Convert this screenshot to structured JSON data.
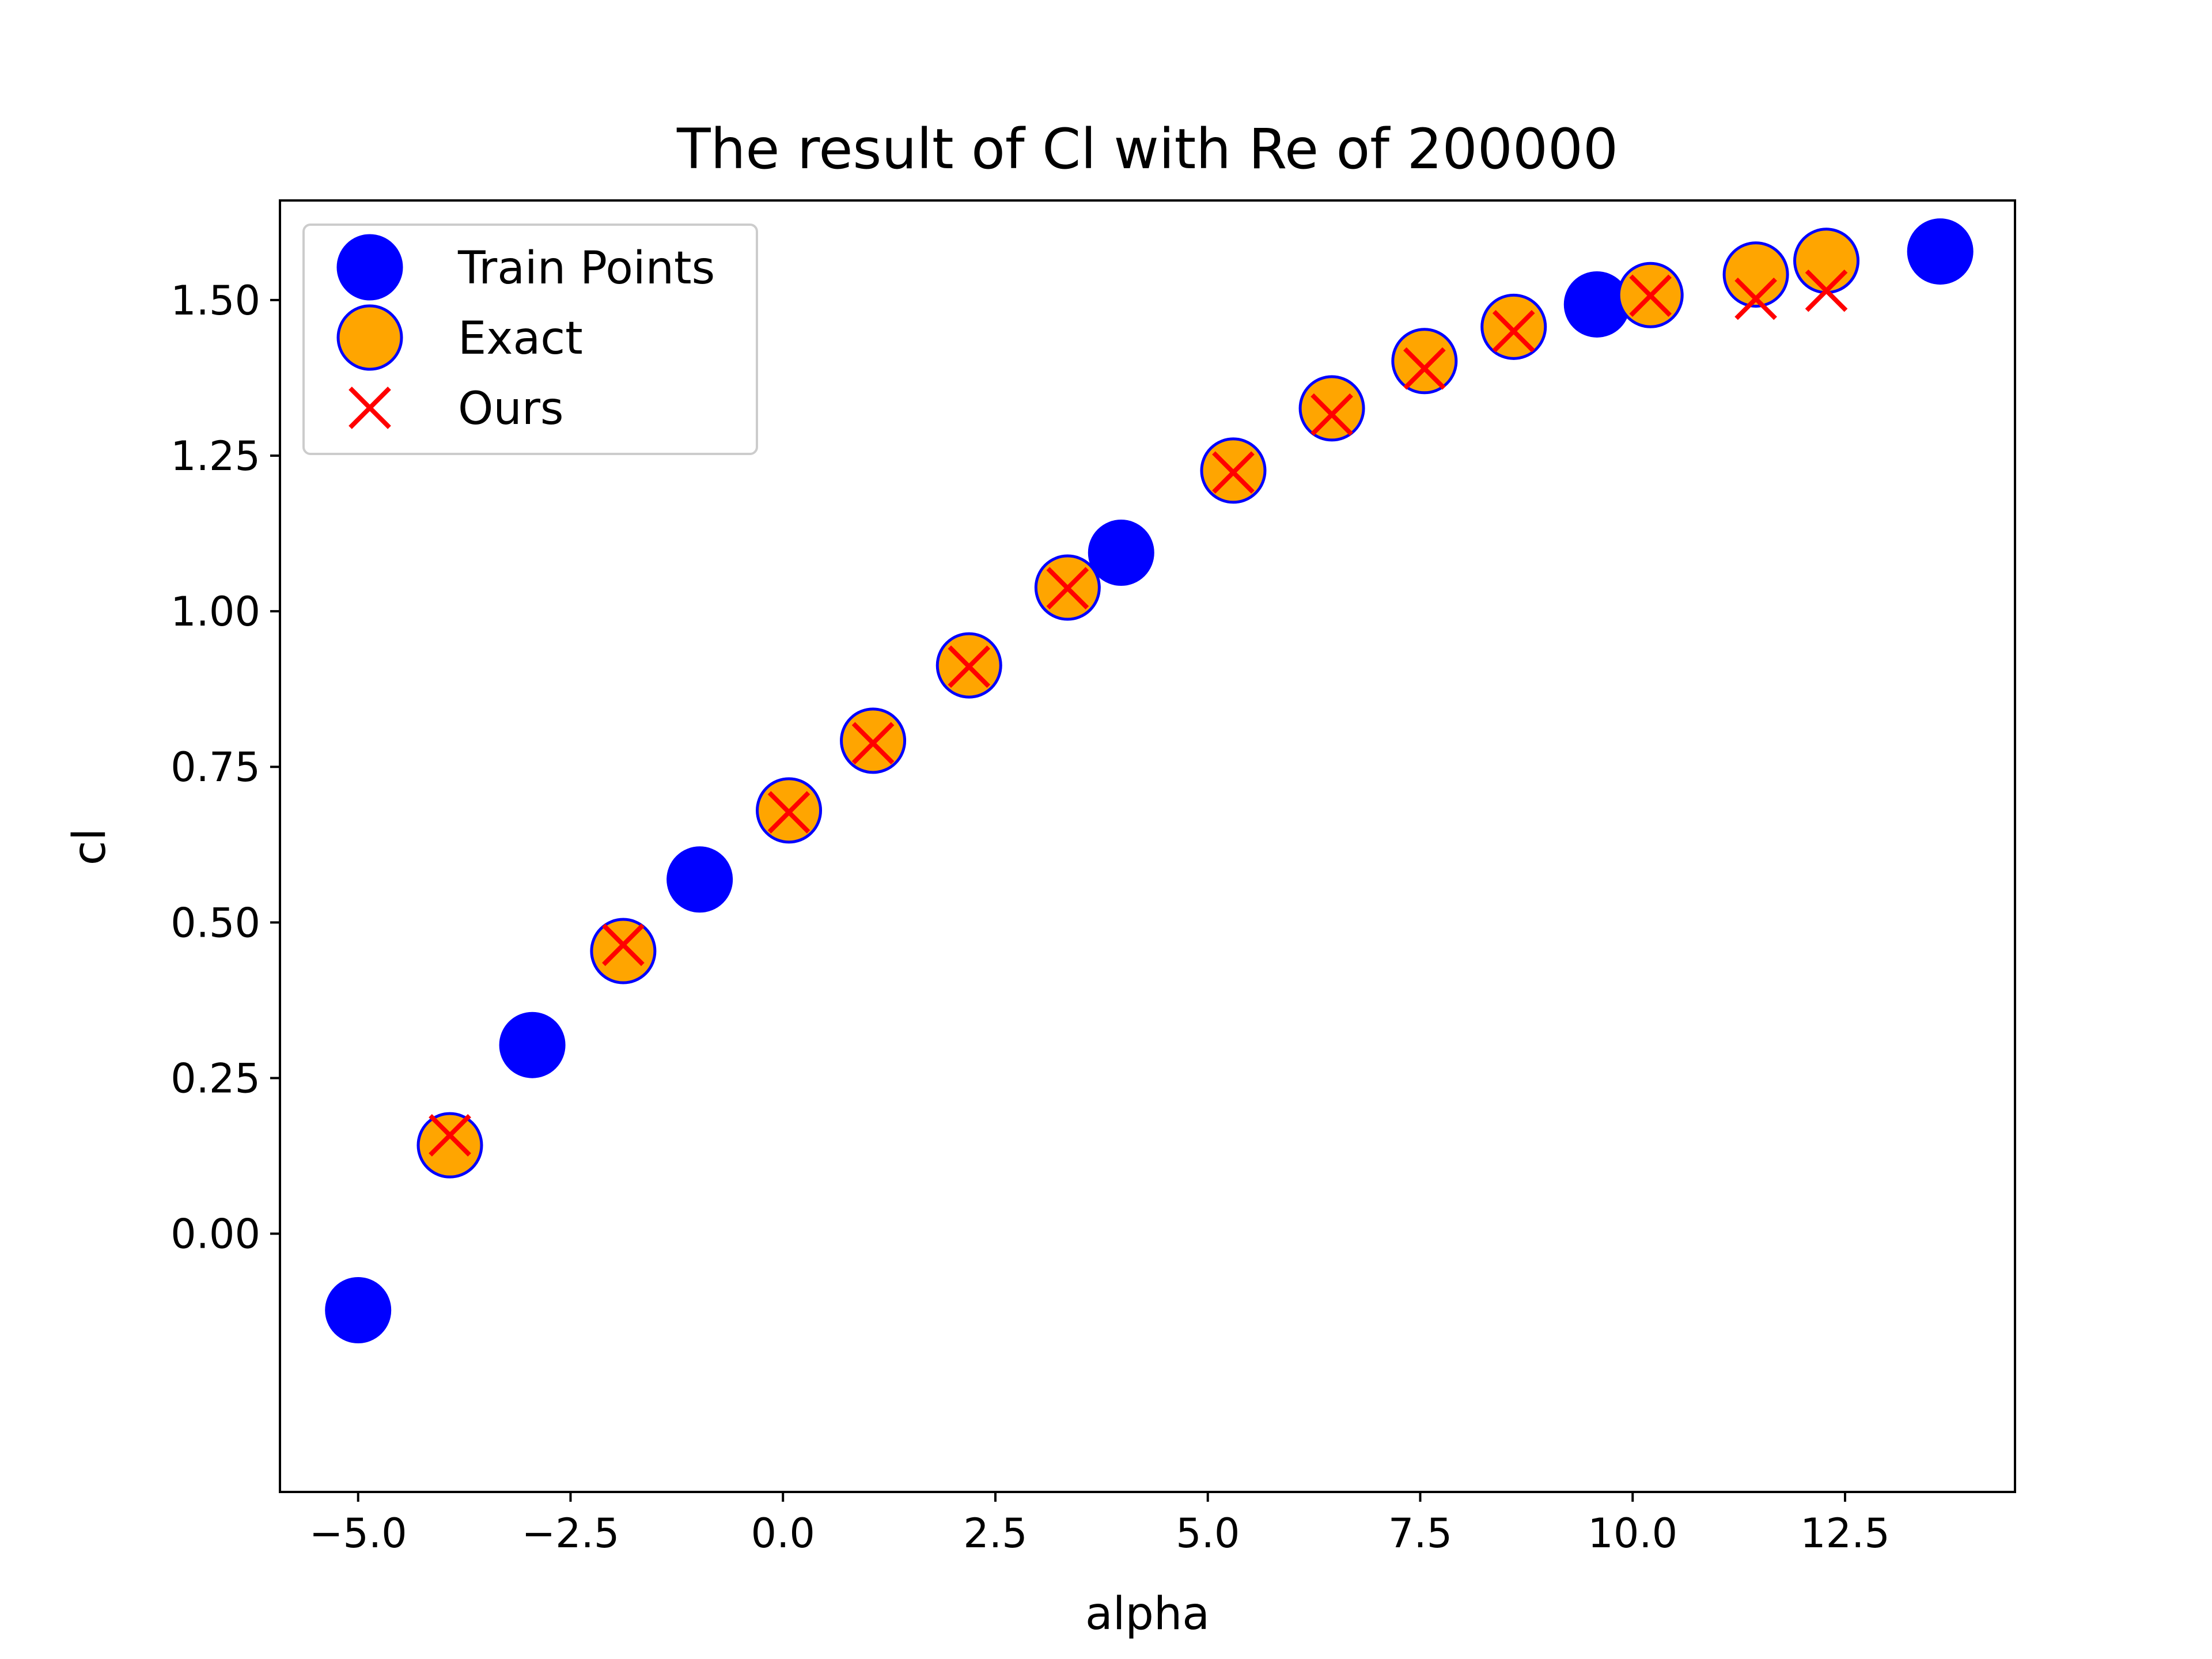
{
  "chart_data": {
    "type": "scatter",
    "title": "The result of Cl with Re of 200000",
    "xlabel": "alpha",
    "ylabel": "cl",
    "xlim": [
      -5.92,
      14.5
    ],
    "ylim": [
      -0.415,
      1.66
    ],
    "xticks": [
      -5.0,
      -2.5,
      0.0,
      2.5,
      5.0,
      7.5,
      10.0,
      12.5
    ],
    "xtick_labels": [
      "−5.0",
      "−2.5",
      "0.0",
      "2.5",
      "5.0",
      "7.5",
      "10.0",
      "12.5"
    ],
    "yticks": [
      0.0,
      0.25,
      0.5,
      0.75,
      1.0,
      1.25,
      1.5
    ],
    "ytick_labels": [
      "0.00",
      "0.25",
      "0.50",
      "0.75",
      "1.00",
      "1.25",
      "1.50"
    ],
    "grid": false,
    "legend_position": "upper-left",
    "series": [
      {
        "name": "Train Points",
        "marker": "circle",
        "color": "#0000ff",
        "edgecolor": "#0000ff",
        "x": [
          -5.0,
          -2.95,
          -0.98,
          3.98,
          9.58,
          13.62
        ],
        "y": [
          -0.123,
          0.303,
          0.569,
          1.094,
          1.493,
          1.578
        ]
      },
      {
        "name": "Exact",
        "marker": "circle",
        "color": "#ffa500",
        "edgecolor": "#0000ff",
        "x": [
          -3.92,
          -1.88,
          0.07,
          1.06,
          2.19,
          3.35,
          5.3,
          6.46,
          7.55,
          8.6,
          10.21,
          11.45,
          12.28
        ],
        "y": [
          0.142,
          0.454,
          0.68,
          0.792,
          0.913,
          1.038,
          1.226,
          1.326,
          1.402,
          1.457,
          1.508,
          1.541,
          1.563
        ]
      },
      {
        "name": "Ours",
        "marker": "x",
        "color": "#ff0000",
        "x": [
          -3.92,
          -1.88,
          0.07,
          1.06,
          2.19,
          3.35,
          5.3,
          6.46,
          7.55,
          8.6,
          10.21,
          11.45,
          12.28
        ],
        "y": [
          0.158,
          0.464,
          0.677,
          0.788,
          0.911,
          1.037,
          1.223,
          1.316,
          1.39,
          1.45,
          1.507,
          1.502,
          1.515
        ]
      }
    ]
  }
}
